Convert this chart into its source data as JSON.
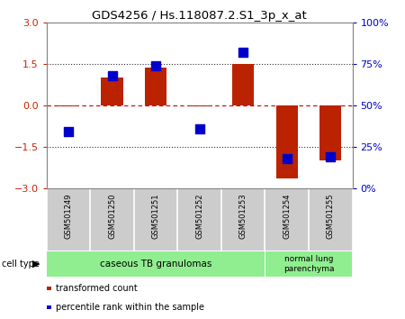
{
  "title": "GDS4256 / Hs.118087.2.S1_3p_x_at",
  "samples": [
    "GSM501249",
    "GSM501250",
    "GSM501251",
    "GSM501252",
    "GSM501253",
    "GSM501254",
    "GSM501255"
  ],
  "transformed_count": [
    -0.04,
    1.0,
    1.35,
    -0.04,
    1.5,
    -2.65,
    -2.0
  ],
  "percentile_rank": [
    34,
    68,
    74,
    36,
    82,
    18,
    19
  ],
  "ylim_left": [
    -3,
    3
  ],
  "ylim_right": [
    0,
    100
  ],
  "yticks_left": [
    -3,
    -1.5,
    0,
    1.5,
    3
  ],
  "yticks_right": [
    0,
    25,
    50,
    75,
    100
  ],
  "ytick_labels_right": [
    "0%",
    "25%",
    "50%",
    "75%",
    "100%"
  ],
  "group1_samples": 5,
  "group2_samples": 2,
  "group1_label": "caseous TB granulomas",
  "group2_label": "normal lung\nparenchyma",
  "group1_color": "#90EE90",
  "group2_color": "#90EE90",
  "cell_type_label": "cell type",
  "bar_color": "#BB2200",
  "dot_color": "#0000CC",
  "bar_width": 0.5,
  "dot_size": 45,
  "background_color": "#ffffff",
  "legend_bar_label": "transformed count",
  "legend_dot_label": "percentile rank within the sample",
  "left_tick_color": "#CC2200",
  "right_tick_color": "#0000CC",
  "zero_line_color": "#CC0000",
  "hline_color": "#333333",
  "hline_lw": 0.8,
  "tick_label_color_left": "#CC2200",
  "tick_label_color_right": "#0000CC"
}
